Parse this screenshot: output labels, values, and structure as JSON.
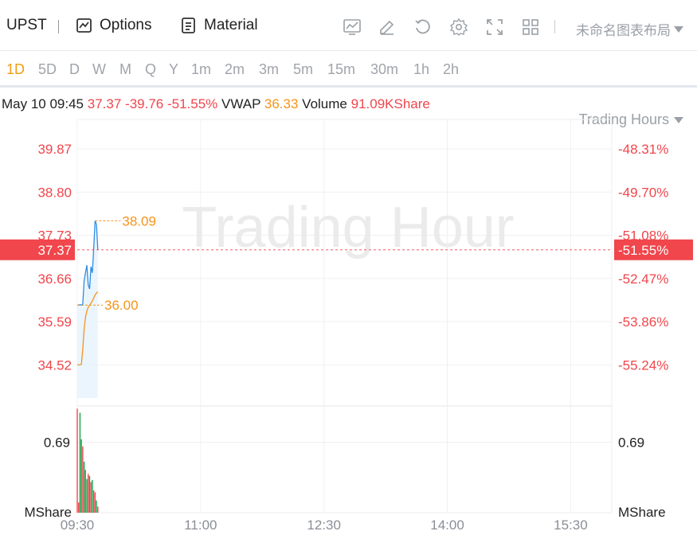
{
  "toolbar": {
    "ticker": "UPST",
    "options_label": "Options",
    "material_label": "Material",
    "layout_label": "未命名图表布局",
    "icons": [
      "indicator-icon",
      "draw-icon",
      "reset-icon",
      "settings-icon",
      "fullscreen-icon",
      "layout-grid-icon"
    ]
  },
  "periods": {
    "items": [
      "1D",
      "5D",
      "D",
      "W",
      "M",
      "Q",
      "Y",
      "1m",
      "2m",
      "3m",
      "5m",
      "15m",
      "30m",
      "1h",
      "2h"
    ],
    "active": "1D",
    "session_label": "Trading Hours"
  },
  "info": {
    "datetime": "May 10 09:45",
    "price": "37.37",
    "change": "-39.76",
    "change_pct": "-51.55%",
    "vwap_label": "VWAP",
    "vwap": "36.33",
    "volume_label": "Volume",
    "volume": "91.09KShare"
  },
  "colors": {
    "up": "#f0464c",
    "down": "#1ba04a",
    "price_line": "#2e8de3",
    "vwap_line": "#f7931a",
    "current_price_bg": "#f0464c"
  },
  "watermark": "Trading Hour",
  "chart_data": {
    "type": "line",
    "x_ticks": [
      "09:30",
      "11:00",
      "12:30",
      "14:00",
      "15:30"
    ],
    "price_axis": {
      "ticks": [
        "39.87",
        "38.80",
        "37.73",
        "36.66",
        "35.59",
        "34.52"
      ],
      "tick_values": [
        39.87,
        38.8,
        37.73,
        36.66,
        35.59,
        34.52
      ],
      "pct_ticks": [
        "-48.31%",
        "-49.70%",
        "-51.08%",
        "-52.47%",
        "-53.86%",
        "-55.24%"
      ],
      "ylim": [
        33.5,
        40.6
      ]
    },
    "current_price": {
      "value": 37.37,
      "label": "37.37",
      "pct_label": "-51.55%"
    },
    "series": [
      {
        "key": "price",
        "time": [
          "09:30",
          "09:31",
          "09:32",
          "09:33",
          "09:34",
          "09:35",
          "09:36",
          "09:37",
          "09:38",
          "09:39",
          "09:40",
          "09:41",
          "09:42",
          "09:43",
          "09:44",
          "09:45"
        ],
        "values": [
          36.0,
          36.0,
          36.01,
          36.0,
          36.02,
          36.6,
          36.8,
          36.99,
          36.5,
          36.4,
          36.95,
          36.8,
          37.4,
          38.09,
          38.0,
          37.37
        ]
      },
      {
        "key": "vwap",
        "time": [
          "09:30",
          "09:31",
          "09:32",
          "09:33",
          "09:34",
          "09:35",
          "09:36",
          "09:37",
          "09:38",
          "09:39",
          "09:40",
          "09:41",
          "09:42",
          "09:43",
          "09:44",
          "09:45"
        ],
        "values": [
          34.52,
          34.52,
          34.52,
          34.53,
          34.9,
          35.4,
          35.7,
          35.85,
          35.95,
          36.0,
          36.05,
          36.1,
          36.18,
          36.25,
          36.3,
          36.33
        ]
      }
    ],
    "annotations": [
      {
        "label": "38.09",
        "value": 38.09,
        "kind": "high"
      },
      {
        "label": "36.00",
        "value": 36.0,
        "kind": "low"
      }
    ],
    "volume": {
      "ticks": [
        "0.69"
      ],
      "unit": "MShare",
      "ylim": [
        0,
        1.03
      ],
      "bars": [
        {
          "t": "09:30",
          "v": 1.02,
          "dir": "up"
        },
        {
          "t": "09:31",
          "v": 0.1,
          "dir": "up"
        },
        {
          "t": "09:32",
          "v": 0.98,
          "dir": "down"
        },
        {
          "t": "09:33",
          "v": 0.72,
          "dir": "down"
        },
        {
          "t": "09:34",
          "v": 0.65,
          "dir": "up"
        },
        {
          "t": "09:35",
          "v": 0.5,
          "dir": "down"
        },
        {
          "t": "09:36",
          "v": 0.42,
          "dir": "up"
        },
        {
          "t": "09:37",
          "v": 0.33,
          "dir": "down"
        },
        {
          "t": "09:38",
          "v": 0.38,
          "dir": "up"
        },
        {
          "t": "09:39",
          "v": 0.36,
          "dir": "down"
        },
        {
          "t": "09:40",
          "v": 0.3,
          "dir": "up"
        },
        {
          "t": "09:41",
          "v": 0.32,
          "dir": "down"
        },
        {
          "t": "09:42",
          "v": 0.22,
          "dir": "up"
        },
        {
          "t": "09:43",
          "v": 0.2,
          "dir": "up"
        },
        {
          "t": "09:44",
          "v": 0.12,
          "dir": "down"
        },
        {
          "t": "09:45",
          "v": 0.06,
          "dir": "up"
        }
      ]
    }
  }
}
